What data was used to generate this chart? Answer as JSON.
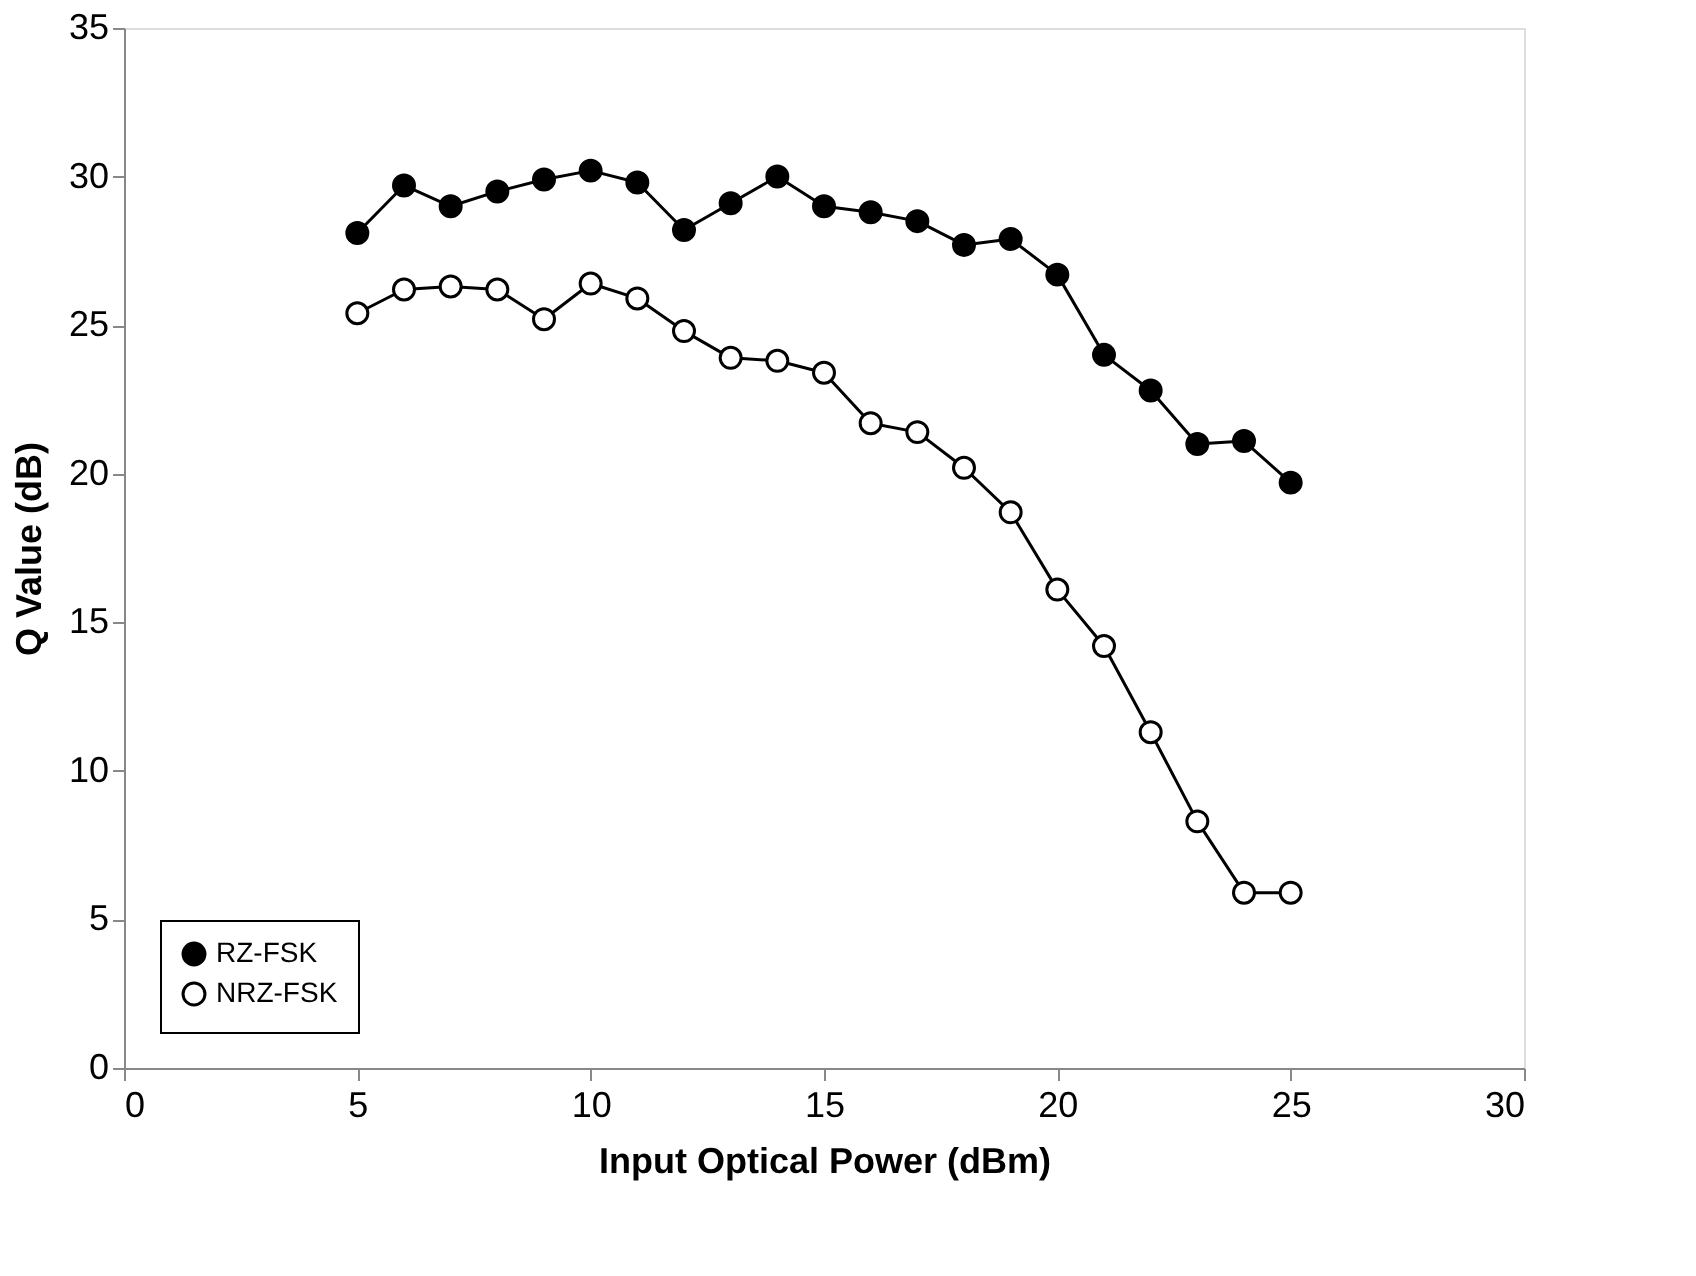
{
  "chart_data": {
    "type": "line",
    "xlabel": "Input Optical Power (dBm)",
    "ylabel": "Q Value (dB)",
    "x": [
      5,
      6,
      7,
      8,
      9,
      10,
      11,
      12,
      13,
      14,
      15,
      16,
      17,
      18,
      19,
      20,
      21,
      22,
      23,
      24,
      25
    ],
    "series": [
      {
        "name": "RZ-FSK",
        "color": "#000000",
        "values": [
          28.1,
          29.7,
          29.0,
          29.5,
          29.9,
          30.2,
          29.8,
          28.2,
          29.1,
          30.0,
          29.0,
          28.8,
          28.5,
          27.7,
          27.9,
          26.7,
          24.0,
          22.8,
          21.0,
          21.1,
          19.7
        ]
      },
      {
        "name": "NRZ-FSK",
        "color": "#ffffff",
        "values": [
          25.4,
          26.2,
          26.3,
          26.2,
          25.2,
          26.4,
          25.9,
          24.8,
          23.9,
          23.8,
          23.4,
          21.7,
          21.4,
          20.2,
          18.7,
          16.1,
          14.2,
          11.3,
          8.3,
          5.9,
          5.9
        ]
      }
    ],
    "xlim": [
      0,
      30
    ],
    "xticks": [
      0,
      5,
      10,
      15,
      20,
      25,
      30
    ],
    "ylim": [
      0,
      35
    ],
    "yticks": [
      0,
      5,
      10,
      15,
      20,
      25,
      30,
      35
    ],
    "grid": false,
    "legend": "bottom left",
    "marker": "circle",
    "line_style": "solid"
  }
}
